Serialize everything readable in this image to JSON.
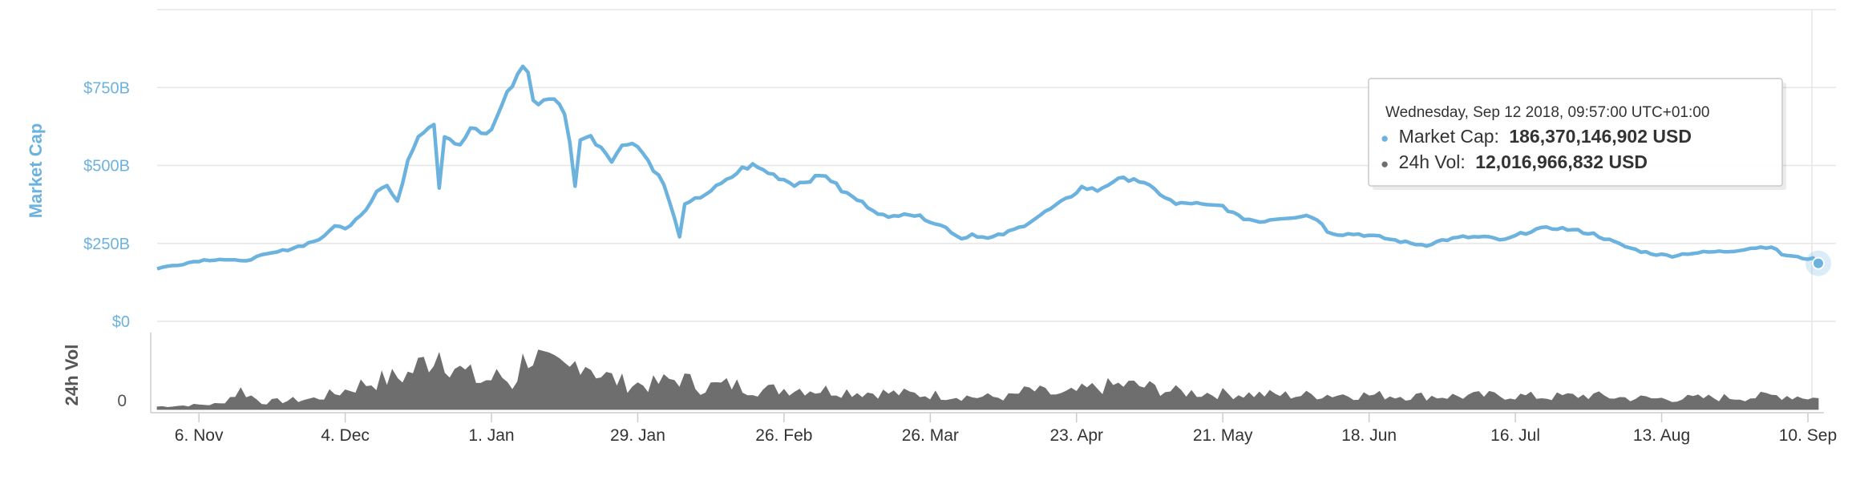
{
  "chart_data": {
    "type": "line",
    "x_tick_labels": [
      "6. Nov",
      "4. Dec",
      "1. Jan",
      "29. Jan",
      "26. Feb",
      "26. Mar",
      "23. Apr",
      "21. May",
      "18. Jun",
      "16. Jul",
      "13. Aug",
      "10. Sep"
    ],
    "x_range": [
      "2017-10-29",
      "2018-09-12"
    ],
    "market_cap_axis": {
      "title": "Market Cap",
      "tick_labels": [
        "$0",
        "$250B",
        "$500B",
        "$750B"
      ],
      "tick_values": [
        0,
        250,
        500,
        750
      ],
      "units": "billion USD",
      "ylim": [
        0,
        1000
      ],
      "color": "#6cb2df"
    },
    "volume_axis": {
      "title": "24h Vol",
      "tick_labels": [
        "0"
      ],
      "units": "billion USD",
      "ylim": [
        0,
        80
      ],
      "color": "#6e6e6e"
    },
    "series": [
      {
        "name": "Market Cap",
        "color": "#6cb2df",
        "points": [
          [
            "2017-10-29",
            170
          ],
          [
            "2017-11-02",
            182
          ],
          [
            "2017-11-06",
            195
          ],
          [
            "2017-11-10",
            200
          ],
          [
            "2017-11-14",
            192
          ],
          [
            "2017-11-18",
            210
          ],
          [
            "2017-11-22",
            226
          ],
          [
            "2017-11-26",
            245
          ],
          [
            "2017-11-30",
            270
          ],
          [
            "2017-12-02",
            310
          ],
          [
            "2017-12-04",
            295
          ],
          [
            "2017-12-06",
            330
          ],
          [
            "2017-12-08",
            360
          ],
          [
            "2017-12-10",
            420
          ],
          [
            "2017-12-12",
            435
          ],
          [
            "2017-12-14",
            380
          ],
          [
            "2017-12-16",
            520
          ],
          [
            "2017-12-18",
            600
          ],
          [
            "2017-12-20",
            625
          ],
          [
            "2017-12-21",
            640
          ],
          [
            "2017-12-22",
            430
          ],
          [
            "2017-12-23",
            600
          ],
          [
            "2017-12-26",
            560
          ],
          [
            "2017-12-28",
            620
          ],
          [
            "2017-12-30",
            600
          ],
          [
            "2018-01-01",
            610
          ],
          [
            "2018-01-03",
            700
          ],
          [
            "2018-01-05",
            760
          ],
          [
            "2018-01-07",
            820
          ],
          [
            "2018-01-08",
            800
          ],
          [
            "2018-01-09",
            700
          ],
          [
            "2018-01-11",
            710
          ],
          [
            "2018-01-13",
            720
          ],
          [
            "2018-01-15",
            660
          ],
          [
            "2018-01-16",
            580
          ],
          [
            "2018-01-17",
            430
          ],
          [
            "2018-01-18",
            590
          ],
          [
            "2018-01-20",
            590
          ],
          [
            "2018-01-22",
            560
          ],
          [
            "2018-01-24",
            520
          ],
          [
            "2018-01-26",
            560
          ],
          [
            "2018-01-28",
            580
          ],
          [
            "2018-01-30",
            540
          ],
          [
            "2018-02-01",
            490
          ],
          [
            "2018-02-03",
            440
          ],
          [
            "2018-02-05",
            330
          ],
          [
            "2018-02-06",
            275
          ],
          [
            "2018-02-07",
            370
          ],
          [
            "2018-02-09",
            390
          ],
          [
            "2018-02-12",
            420
          ],
          [
            "2018-02-15",
            450
          ],
          [
            "2018-02-18",
            490
          ],
          [
            "2018-02-20",
            500
          ],
          [
            "2018-02-24",
            470
          ],
          [
            "2018-02-28",
            440
          ],
          [
            "2018-03-04",
            460
          ],
          [
            "2018-03-06",
            470
          ],
          [
            "2018-03-09",
            420
          ],
          [
            "2018-03-12",
            390
          ],
          [
            "2018-03-15",
            360
          ],
          [
            "2018-03-18",
            330
          ],
          [
            "2018-03-21",
            350
          ],
          [
            "2018-03-25",
            330
          ],
          [
            "2018-03-29",
            300
          ],
          [
            "2018-04-01",
            265
          ],
          [
            "2018-04-03",
            280
          ],
          [
            "2018-04-06",
            265
          ],
          [
            "2018-04-09",
            280
          ],
          [
            "2018-04-12",
            300
          ],
          [
            "2018-04-15",
            330
          ],
          [
            "2018-04-18",
            360
          ],
          [
            "2018-04-21",
            390
          ],
          [
            "2018-04-24",
            430
          ],
          [
            "2018-04-27",
            420
          ],
          [
            "2018-04-30",
            450
          ],
          [
            "2018-05-04",
            460
          ],
          [
            "2018-05-06",
            440
          ],
          [
            "2018-05-09",
            410
          ],
          [
            "2018-05-12",
            375
          ],
          [
            "2018-05-15",
            380
          ],
          [
            "2018-05-18",
            370
          ],
          [
            "2018-05-21",
            370
          ],
          [
            "2018-05-24",
            335
          ],
          [
            "2018-05-28",
            320
          ],
          [
            "2018-05-31",
            330
          ],
          [
            "2018-06-03",
            335
          ],
          [
            "2018-06-06",
            340
          ],
          [
            "2018-06-08",
            330
          ],
          [
            "2018-06-10",
            290
          ],
          [
            "2018-06-12",
            280
          ],
          [
            "2018-06-16",
            280
          ],
          [
            "2018-06-20",
            270
          ],
          [
            "2018-06-23",
            260
          ],
          [
            "2018-06-26",
            250
          ],
          [
            "2018-06-29",
            245
          ],
          [
            "2018-07-02",
            260
          ],
          [
            "2018-07-06",
            270
          ],
          [
            "2018-07-10",
            270
          ],
          [
            "2018-07-14",
            260
          ],
          [
            "2018-07-17",
            280
          ],
          [
            "2018-07-20",
            295
          ],
          [
            "2018-07-24",
            300
          ],
          [
            "2018-07-28",
            290
          ],
          [
            "2018-07-31",
            280
          ],
          [
            "2018-08-03",
            260
          ],
          [
            "2018-08-06",
            240
          ],
          [
            "2018-08-09",
            225
          ],
          [
            "2018-08-12",
            215
          ],
          [
            "2018-08-15",
            210
          ],
          [
            "2018-08-18",
            218
          ],
          [
            "2018-08-22",
            222
          ],
          [
            "2018-08-26",
            225
          ],
          [
            "2018-08-30",
            235
          ],
          [
            "2018-09-03",
            240
          ],
          [
            "2018-09-05",
            215
          ],
          [
            "2018-09-08",
            205
          ],
          [
            "2018-09-11",
            200
          ],
          [
            "2018-09-12",
            186
          ]
        ]
      },
      {
        "name": "24h Vol",
        "color": "#6e6e6e",
        "points": [
          [
            "2017-10-29",
            3
          ],
          [
            "2017-11-10",
            6
          ],
          [
            "2017-11-14",
            22
          ],
          [
            "2017-11-18",
            8
          ],
          [
            "2017-11-28",
            12
          ],
          [
            "2017-12-02",
            18
          ],
          [
            "2017-12-08",
            30
          ],
          [
            "2017-12-12",
            34
          ],
          [
            "2017-12-16",
            40
          ],
          [
            "2017-12-22",
            68
          ],
          [
            "2017-12-26",
            44
          ],
          [
            "2017-12-30",
            32
          ],
          [
            "2018-01-03",
            38
          ],
          [
            "2018-01-05",
            28
          ],
          [
            "2018-01-08",
            66
          ],
          [
            "2018-01-12",
            48
          ],
          [
            "2018-01-16",
            44
          ],
          [
            "2018-01-18",
            62
          ],
          [
            "2018-01-22",
            40
          ],
          [
            "2018-01-26",
            30
          ],
          [
            "2018-02-01",
            28
          ],
          [
            "2018-02-06",
            36
          ],
          [
            "2018-02-10",
            26
          ],
          [
            "2018-02-16",
            28
          ],
          [
            "2018-02-22",
            22
          ],
          [
            "2018-02-28",
            24
          ],
          [
            "2018-03-06",
            22
          ],
          [
            "2018-03-12",
            20
          ],
          [
            "2018-03-20",
            18
          ],
          [
            "2018-03-28",
            16
          ],
          [
            "2018-04-04",
            14
          ],
          [
            "2018-04-10",
            14
          ],
          [
            "2018-04-14",
            22
          ],
          [
            "2018-04-20",
            16
          ],
          [
            "2018-04-26",
            24
          ],
          [
            "2018-05-02",
            28
          ],
          [
            "2018-05-06",
            26
          ],
          [
            "2018-05-12",
            20
          ],
          [
            "2018-05-20",
            18
          ],
          [
            "2018-05-28",
            17
          ],
          [
            "2018-06-04",
            16
          ],
          [
            "2018-06-12",
            17
          ],
          [
            "2018-06-20",
            16
          ],
          [
            "2018-06-28",
            15
          ],
          [
            "2018-07-06",
            15
          ],
          [
            "2018-07-14",
            16
          ],
          [
            "2018-07-22",
            14
          ],
          [
            "2018-07-30",
            16
          ],
          [
            "2018-08-06",
            13
          ],
          [
            "2018-08-14",
            12
          ],
          [
            "2018-08-22",
            13
          ],
          [
            "2018-08-30",
            14
          ],
          [
            "2018-09-05",
            16
          ],
          [
            "2018-09-10",
            14
          ],
          [
            "2018-09-12",
            12
          ]
        ]
      }
    ],
    "grid": true,
    "legend": "none"
  },
  "tooltip": {
    "date": "Wednesday, Sep 12 2018, 09:57:00 UTC+01:00",
    "market_cap_label": "Market Cap:",
    "market_cap_value": "186,370,146,902 USD",
    "volume_label": "24h Vol:",
    "volume_value": "12,016,966,832 USD",
    "marker_symbol": "●",
    "colors": {
      "market_cap": "#6cb2df",
      "volume": "#6e6e6e"
    }
  }
}
